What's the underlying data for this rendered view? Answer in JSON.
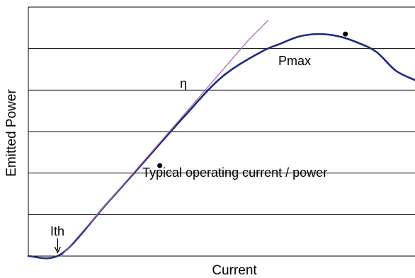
{
  "chart_data": {
    "type": "line",
    "title": "",
    "xlabel": "Current",
    "ylabel": "Emitted Power",
    "xlim": [
      0,
      100
    ],
    "ylim": [
      0,
      6
    ],
    "grid": "horizontal",
    "series": [
      {
        "color": "#1f2a7a",
        "x": [
          0,
          8.5,
          20,
          30,
          40,
          50,
          60,
          65,
          70,
          75,
          80,
          85,
          90,
          95,
          100
        ],
        "y": [
          0,
          0.05,
          1.23,
          2.28,
          3.33,
          4.31,
          4.91,
          5.11,
          5.29,
          5.35,
          5.3,
          5.15,
          4.92,
          4.47,
          4.24
        ]
      },
      {
        "color": "#b06ab0",
        "x": [
          8.5,
          40,
          57,
          62
        ],
        "y": [
          0,
          3.38,
          5.21,
          5.68
        ]
      }
    ],
    "annotations": [
      {
        "text": "Pmax",
        "x": 82,
        "y": 5.35,
        "marker": true
      },
      {
        "text": "Typical operating current / power",
        "x": 34,
        "y": 2.18,
        "marker": true
      },
      {
        "text": "η",
        "x": 43,
        "y": 4.05,
        "marker": false
      },
      {
        "text": "Ith",
        "x": 8.5,
        "y": 0.05,
        "marker": false
      }
    ]
  }
}
